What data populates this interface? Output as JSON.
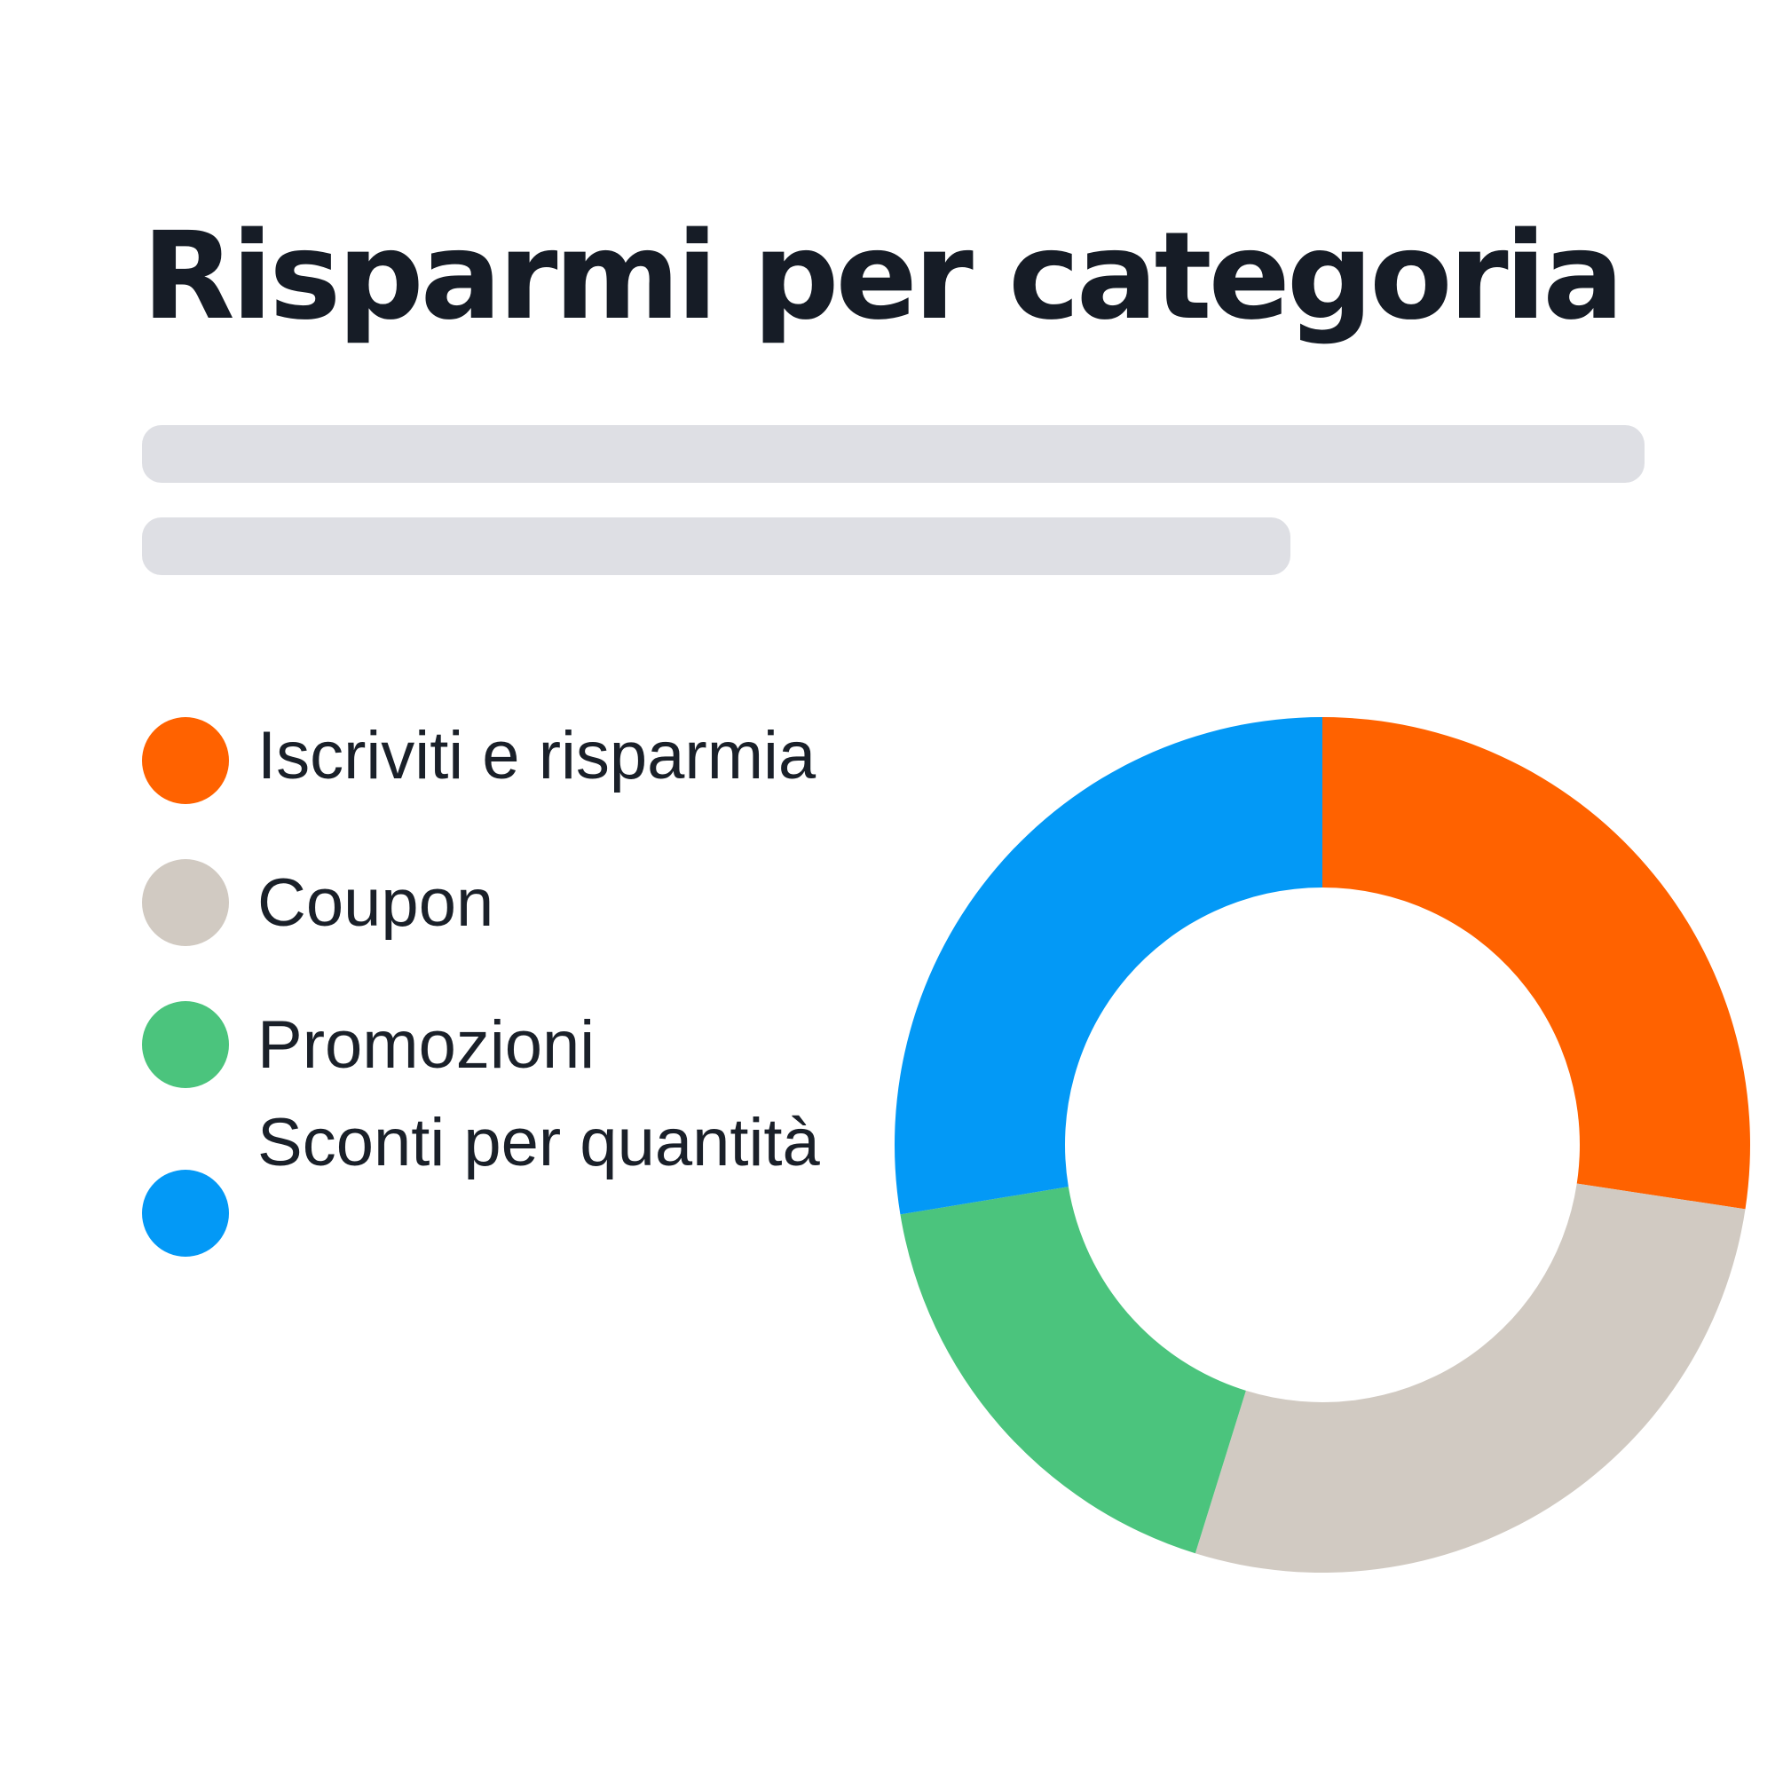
{
  "chart_data": {
    "type": "pie",
    "title": "Risparmi per categoria",
    "donut": true,
    "categories": [
      "Iscriviti e risparmia",
      "Coupon",
      "Promozioni",
      "Sconti per quantità"
    ],
    "values": [
      27.4,
      27.4,
      17.6,
      27.6
    ],
    "colors": [
      "#ff6200",
      "#d1cac2",
      "#4bc47d",
      "#0399f6"
    ],
    "legend": "left",
    "start_angle": "top",
    "direction": "clockwise"
  },
  "legend_items": [
    {
      "label": "Iscriviti e risparmia",
      "color": "#ff6200"
    },
    {
      "label": "Coupon",
      "color": "#d1cac2"
    },
    {
      "label": "Promozioni",
      "color": "#4bc47d"
    },
    {
      "label": "Sconti per quantità",
      "color": "#0399f6"
    }
  ]
}
